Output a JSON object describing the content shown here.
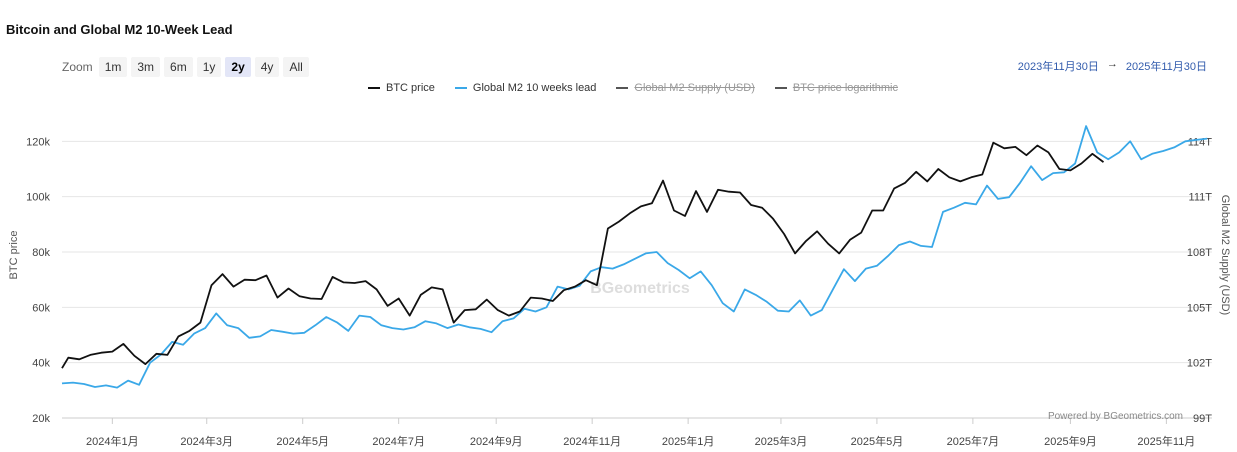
{
  "title": "Bitcoin and Global M2 10-Week Lead",
  "zoom": {
    "label": "Zoom",
    "buttons": [
      "1m",
      "3m",
      "6m",
      "1y",
      "2y",
      "4y",
      "All"
    ],
    "active": "2y"
  },
  "range": {
    "from": "2023年11月30日",
    "arrow": "→",
    "to": "2025年11月30日"
  },
  "powered_by": "Powered by BGeometrics.com",
  "watermark": "BGeometrics",
  "chart_data": {
    "type": "line",
    "title": "Bitcoin and Global M2 10-Week Lead",
    "legend": [
      {
        "name": "BTC price",
        "color": "#111111",
        "visible": true
      },
      {
        "name": "Global M2 10 weeks lead",
        "color": "#3aa8e8",
        "visible": true
      },
      {
        "name": "Global M2 Supply (USD)",
        "color": "#555555",
        "visible": false
      },
      {
        "name": "BTC price logarithmic",
        "color": "#555555",
        "visible": false
      }
    ],
    "legend_position": "top-center",
    "ylabel_left": "BTC price",
    "ylabel_right": "Global M2 Supply (USD)",
    "y_left_range": [
      20000,
      140000
    ],
    "y_left_ticks": [
      {
        "value": 20000,
        "label": "20k"
      },
      {
        "value": 40000,
        "label": "40k"
      },
      {
        "value": 60000,
        "label": "60k"
      },
      {
        "value": 80000,
        "label": "80k"
      },
      {
        "value": 100000,
        "label": "100k"
      },
      {
        "value": 120000,
        "label": "120k"
      }
    ],
    "y_right_ticks": [
      "99T",
      "102T",
      "105T",
      "108T",
      "111T",
      "114T"
    ],
    "x_range": [
      "2023-11-30",
      "2025-11-30"
    ],
    "x_ticks": [
      {
        "date": "2024-01-01",
        "label": "2024年1月"
      },
      {
        "date": "2024-03-01",
        "label": "2024年3月"
      },
      {
        "date": "2024-05-01",
        "label": "2024年5月"
      },
      {
        "date": "2024-07-01",
        "label": "2024年7月"
      },
      {
        "date": "2024-09-01",
        "label": "2024年9月"
      },
      {
        "date": "2024-11-01",
        "label": "2024年11月"
      },
      {
        "date": "2025-01-01",
        "label": "2025年1月"
      },
      {
        "date": "2025-03-01",
        "label": "2025年3月"
      },
      {
        "date": "2025-05-01",
        "label": "2025年5月"
      },
      {
        "date": "2025-07-01",
        "label": "2025年7月"
      },
      {
        "date": "2025-09-01",
        "label": "2025年9月"
      },
      {
        "date": "2025-11-01",
        "label": "2025年11月"
      }
    ],
    "grid": true,
    "series": [
      {
        "name": "BTC price",
        "color": "#111111",
        "points": [
          [
            "2023-11-30",
            38000
          ],
          [
            "2023-12-04",
            41800
          ],
          [
            "2023-12-11",
            41200
          ],
          [
            "2023-12-18",
            42800
          ],
          [
            "2023-12-25",
            43600
          ],
          [
            "2024-01-01",
            44000
          ],
          [
            "2024-01-08",
            46800
          ],
          [
            "2024-01-15",
            42500
          ],
          [
            "2024-01-22",
            39500
          ],
          [
            "2024-01-29",
            43200
          ],
          [
            "2024-02-05",
            42800
          ],
          [
            "2024-02-12",
            49500
          ],
          [
            "2024-02-19",
            51500
          ],
          [
            "2024-02-26",
            54500
          ],
          [
            "2024-03-04",
            68000
          ],
          [
            "2024-03-11",
            72000
          ],
          [
            "2024-03-18",
            67500
          ],
          [
            "2024-03-25",
            70000
          ],
          [
            "2024-04-01",
            69800
          ],
          [
            "2024-04-08",
            71500
          ],
          [
            "2024-04-15",
            63500
          ],
          [
            "2024-04-22",
            66800
          ],
          [
            "2024-04-29",
            64000
          ],
          [
            "2024-05-06",
            63200
          ],
          [
            "2024-05-13",
            63000
          ],
          [
            "2024-05-20",
            71000
          ],
          [
            "2024-05-27",
            69000
          ],
          [
            "2024-06-03",
            68800
          ],
          [
            "2024-06-10",
            69500
          ],
          [
            "2024-06-17",
            66500
          ],
          [
            "2024-06-24",
            60500
          ],
          [
            "2024-07-01",
            63200
          ],
          [
            "2024-07-08",
            57000
          ],
          [
            "2024-07-15",
            64500
          ],
          [
            "2024-07-22",
            67200
          ],
          [
            "2024-07-29",
            66500
          ],
          [
            "2024-08-05",
            54500
          ],
          [
            "2024-08-12",
            59000
          ],
          [
            "2024-08-19",
            59300
          ],
          [
            "2024-08-26",
            62800
          ],
          [
            "2024-09-02",
            59000
          ],
          [
            "2024-09-09",
            57000
          ],
          [
            "2024-09-16",
            58500
          ],
          [
            "2024-09-23",
            63500
          ],
          [
            "2024-09-30",
            63200
          ],
          [
            "2024-10-07",
            62300
          ],
          [
            "2024-10-14",
            66200
          ],
          [
            "2024-10-21",
            67500
          ],
          [
            "2024-10-28",
            69800
          ],
          [
            "2024-11-04",
            68000
          ],
          [
            "2024-11-11",
            88500
          ],
          [
            "2024-11-18",
            91000
          ],
          [
            "2024-11-25",
            94000
          ],
          [
            "2024-12-02",
            96500
          ],
          [
            "2024-12-09",
            97600
          ],
          [
            "2024-12-16",
            105800
          ],
          [
            "2024-12-23",
            95000
          ],
          [
            "2024-12-30",
            93000
          ],
          [
            "2025-01-06",
            102000
          ],
          [
            "2025-01-13",
            94500
          ],
          [
            "2025-01-20",
            102500
          ],
          [
            "2025-01-27",
            101800
          ],
          [
            "2025-02-03",
            101500
          ],
          [
            "2025-02-10",
            97000
          ],
          [
            "2025-02-17",
            96000
          ],
          [
            "2025-02-24",
            92000
          ],
          [
            "2025-03-03",
            86500
          ],
          [
            "2025-03-10",
            79500
          ],
          [
            "2025-03-17",
            84000
          ],
          [
            "2025-03-24",
            87500
          ],
          [
            "2025-03-31",
            83000
          ],
          [
            "2025-04-07",
            79500
          ],
          [
            "2025-04-14",
            84500
          ],
          [
            "2025-04-21",
            87000
          ],
          [
            "2025-04-28",
            95000
          ],
          [
            "2025-05-05",
            95000
          ],
          [
            "2025-05-12",
            103000
          ],
          [
            "2025-05-19",
            105000
          ],
          [
            "2025-05-26",
            109000
          ],
          [
            "2025-06-02",
            105500
          ],
          [
            "2025-06-09",
            110000
          ],
          [
            "2025-06-16",
            107000
          ],
          [
            "2025-06-23",
            105500
          ],
          [
            "2025-06-30",
            107000
          ],
          [
            "2025-07-07",
            108000
          ],
          [
            "2025-07-14",
            119500
          ],
          [
            "2025-07-21",
            117500
          ],
          [
            "2025-07-28",
            118000
          ],
          [
            "2025-08-04",
            115000
          ],
          [
            "2025-08-11",
            118500
          ],
          [
            "2025-08-18",
            116000
          ],
          [
            "2025-08-25",
            110000
          ],
          [
            "2025-09-01",
            109500
          ],
          [
            "2025-09-08",
            112000
          ],
          [
            "2025-09-15",
            115500
          ],
          [
            "2025-09-22",
            112500
          ]
        ]
      },
      {
        "name": "Global M2 10 weeks lead",
        "color": "#3aa8e8",
        "points": [
          [
            "2023-11-30",
            32500
          ],
          [
            "2023-12-07",
            32800
          ],
          [
            "2023-12-14",
            32300
          ],
          [
            "2023-12-21",
            31200
          ],
          [
            "2023-12-28",
            31800
          ],
          [
            "2024-01-04",
            31000
          ],
          [
            "2024-01-11",
            33500
          ],
          [
            "2024-01-18",
            32000
          ],
          [
            "2024-01-25",
            40000
          ],
          [
            "2024-02-01",
            43000
          ],
          [
            "2024-02-08",
            47500
          ],
          [
            "2024-02-15",
            46500
          ],
          [
            "2024-02-22",
            50500
          ],
          [
            "2024-02-29",
            52500
          ],
          [
            "2024-03-07",
            57800
          ],
          [
            "2024-03-14",
            53500
          ],
          [
            "2024-03-21",
            52500
          ],
          [
            "2024-03-28",
            49000
          ],
          [
            "2024-04-04",
            49500
          ],
          [
            "2024-04-11",
            51800
          ],
          [
            "2024-04-18",
            51200
          ],
          [
            "2024-04-25",
            50500
          ],
          [
            "2024-05-02",
            50800
          ],
          [
            "2024-05-09",
            53500
          ],
          [
            "2024-05-16",
            56500
          ],
          [
            "2024-05-23",
            54500
          ],
          [
            "2024-05-30",
            51500
          ],
          [
            "2024-06-06",
            57000
          ],
          [
            "2024-06-13",
            56500
          ],
          [
            "2024-06-20",
            53500
          ],
          [
            "2024-06-27",
            52500
          ],
          [
            "2024-07-04",
            52000
          ],
          [
            "2024-07-11",
            52800
          ],
          [
            "2024-07-18",
            55000
          ],
          [
            "2024-07-25",
            54200
          ],
          [
            "2024-08-01",
            52500
          ],
          [
            "2024-08-08",
            53800
          ],
          [
            "2024-08-15",
            52800
          ],
          [
            "2024-08-22",
            52200
          ],
          [
            "2024-08-29",
            51000
          ],
          [
            "2024-09-05",
            55000
          ],
          [
            "2024-09-12",
            56000
          ],
          [
            "2024-09-19",
            59500
          ],
          [
            "2024-09-26",
            58500
          ],
          [
            "2024-10-03",
            60000
          ],
          [
            "2024-10-10",
            67500
          ],
          [
            "2024-10-17",
            66500
          ],
          [
            "2024-10-24",
            67800
          ],
          [
            "2024-10-31",
            73000
          ],
          [
            "2024-11-07",
            74500
          ],
          [
            "2024-11-14",
            74000
          ],
          [
            "2024-11-21",
            75500
          ],
          [
            "2024-11-28",
            77500
          ],
          [
            "2024-12-05",
            79500
          ],
          [
            "2024-12-12",
            80000
          ],
          [
            "2024-12-19",
            76000
          ],
          [
            "2024-12-26",
            73500
          ],
          [
            "2025-01-02",
            70500
          ],
          [
            "2025-01-09",
            73000
          ],
          [
            "2025-01-16",
            68000
          ],
          [
            "2025-01-23",
            61500
          ],
          [
            "2025-01-30",
            58500
          ],
          [
            "2025-02-06",
            66500
          ],
          [
            "2025-02-13",
            64500
          ],
          [
            "2025-02-20",
            62000
          ],
          [
            "2025-02-27",
            58800
          ],
          [
            "2025-03-06",
            58500
          ],
          [
            "2025-03-13",
            62500
          ],
          [
            "2025-03-20",
            57000
          ],
          [
            "2025-03-27",
            59000
          ],
          [
            "2025-04-03",
            66500
          ],
          [
            "2025-04-10",
            73800
          ],
          [
            "2025-04-17",
            69500
          ],
          [
            "2025-04-24",
            74000
          ],
          [
            "2025-05-01",
            75000
          ],
          [
            "2025-05-08",
            78500
          ],
          [
            "2025-05-15",
            82500
          ],
          [
            "2025-05-22",
            83800
          ],
          [
            "2025-05-29",
            82200
          ],
          [
            "2025-06-05",
            81800
          ],
          [
            "2025-06-12",
            94500
          ],
          [
            "2025-06-19",
            96000
          ],
          [
            "2025-06-26",
            97800
          ],
          [
            "2025-07-03",
            97200
          ],
          [
            "2025-07-10",
            104000
          ],
          [
            "2025-07-17",
            99200
          ],
          [
            "2025-07-24",
            99800
          ],
          [
            "2025-07-31",
            105000
          ],
          [
            "2025-08-07",
            111000
          ],
          [
            "2025-08-14",
            106000
          ],
          [
            "2025-08-21",
            108500
          ],
          [
            "2025-08-28",
            108800
          ],
          [
            "2025-09-04",
            112000
          ],
          [
            "2025-09-11",
            125500
          ],
          [
            "2025-09-18",
            116000
          ],
          [
            "2025-09-25",
            113500
          ],
          [
            "2025-10-02",
            116000
          ],
          [
            "2025-10-09",
            120000
          ],
          [
            "2025-10-16",
            113500
          ],
          [
            "2025-10-23",
            115500
          ],
          [
            "2025-10-30",
            116500
          ],
          [
            "2025-11-06",
            117800
          ],
          [
            "2025-11-13",
            120000
          ],
          [
            "2025-11-20",
            120500
          ],
          [
            "2025-11-27",
            121000
          ]
        ]
      }
    ]
  }
}
